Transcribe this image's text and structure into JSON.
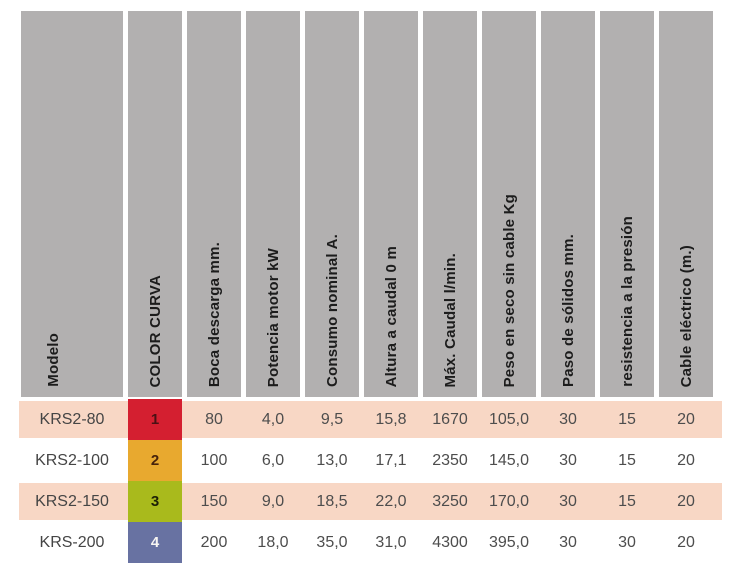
{
  "table": {
    "columns": [
      {
        "label": "Modelo"
      },
      {
        "label": "COLOR CURVA"
      },
      {
        "label": "Boca descarga mm."
      },
      {
        "label": "Potencia motor kW"
      },
      {
        "label": "Consumo nominal A."
      },
      {
        "label": "Altura a caudal 0 m"
      },
      {
        "label": "Máx. Caudal l/min."
      },
      {
        "label": "Peso en seco sin cable Kg"
      },
      {
        "label": "Paso de sólidos mm."
      },
      {
        "label": "resistencia a la presión"
      },
      {
        "label": "Cable eléctrico (m.)"
      }
    ],
    "rows": [
      {
        "modelo": "KRS2-80",
        "curva": "1",
        "curva_color": "#d41f30",
        "curva_number_color": "#4a1014",
        "band_color": "#f8d7c5",
        "values": [
          "80",
          "4,0",
          "9,5",
          "15,8",
          "1670",
          "105,0",
          "30",
          "15",
          "20"
        ]
      },
      {
        "modelo": "KRS2-100",
        "curva": "2",
        "curva_color": "#e8a92f",
        "curva_number_color": "#47230b",
        "band_color": "#ffffff",
        "values": [
          "100",
          "6,0",
          "13,0",
          "17,1",
          "2350",
          "145,0",
          "30",
          "15",
          "20"
        ]
      },
      {
        "modelo": "KRS2-150",
        "curva": "3",
        "curva_color": "#a9ba1c",
        "curva_number_color": "#1d2106",
        "band_color": "#f8d7c5",
        "values": [
          "150",
          "9,0",
          "18,5",
          "22,0",
          "3250",
          "170,0",
          "30",
          "15",
          "20"
        ]
      },
      {
        "modelo": "KRS-200",
        "curva": "4",
        "curva_color": "#6872a2",
        "curva_number_color": "#f7f5f2",
        "band_color": "#ffffff",
        "values": [
          "200",
          "18,0",
          "35,0",
          "31,0",
          "4300",
          "395,0",
          "30",
          "30",
          "20"
        ]
      }
    ]
  },
  "colors": {
    "header_background": "#b2b0b0",
    "row_band_pink": "#f8d7c5",
    "curva_red": "#d41f30",
    "curva_orange": "#e8a92f",
    "curva_green": "#a9ba1c",
    "curva_blue": "#6872a2",
    "data_text": "#4d4d4d",
    "header_text": "#1c1c1c"
  }
}
